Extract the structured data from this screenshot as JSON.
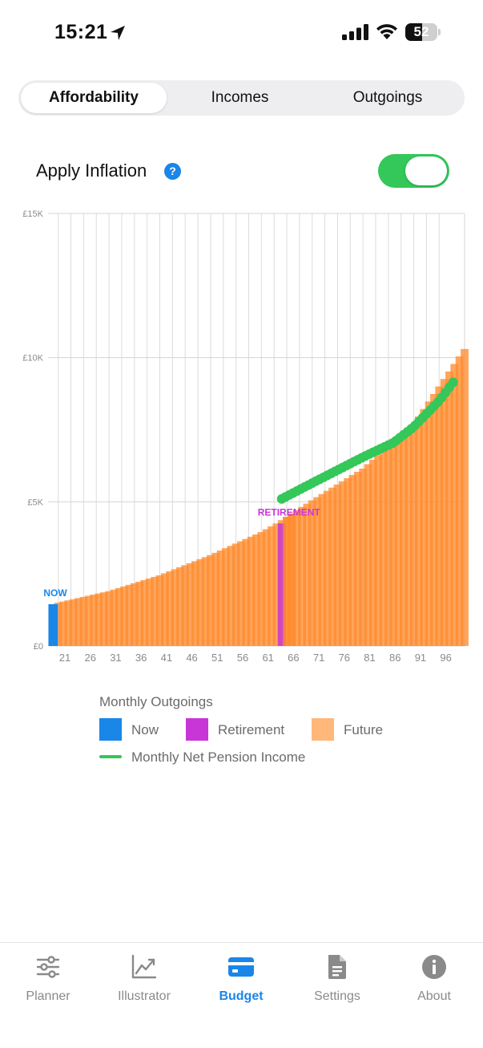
{
  "status_bar": {
    "time": "15:21",
    "battery": "52",
    "battery_percent": 52
  },
  "segments": [
    {
      "label": "Affordability",
      "active": true
    },
    {
      "label": "Incomes",
      "active": false
    },
    {
      "label": "Outgoings",
      "active": false
    }
  ],
  "inflation": {
    "label": "Apply Inflation",
    "help": "?",
    "enabled": true
  },
  "chart_data": {
    "type": "bar",
    "y_tick_labels": [
      "£0",
      "£5K",
      "£10K",
      "£15K"
    ],
    "x_tick_labels": [
      "21",
      "26",
      "31",
      "36",
      "41",
      "46",
      "51",
      "56",
      "61",
      "66",
      "71",
      "76",
      "81",
      "86",
      "91",
      "96"
    ],
    "ylim": [
      0,
      15000
    ],
    "xlim": [
      18,
      100
    ],
    "annotations": {
      "now": "NOW",
      "retirement": "RETIREMENT"
    },
    "grid": true,
    "now": {
      "age": 19,
      "value": 1450
    },
    "retirement": {
      "age": 64,
      "value": 4250
    },
    "future_outgoings": [
      [
        20,
        1500
      ],
      [
        30,
        1900
      ],
      [
        40,
        2450
      ],
      [
        50,
        3150
      ],
      [
        60,
        3950
      ],
      [
        63,
        4250
      ],
      [
        70,
        5050
      ],
      [
        80,
        6150
      ],
      [
        90,
        7700
      ],
      [
        100,
        10300
      ]
    ],
    "net_pension_income": [
      [
        64,
        5100
      ],
      [
        70,
        5650
      ],
      [
        75,
        6100
      ],
      [
        80,
        6550
      ],
      [
        86,
        7050
      ],
      [
        90,
        7600
      ],
      [
        95,
        8500
      ],
      [
        98,
        9200
      ]
    ]
  },
  "legend": {
    "title": "Monthly Outgoings",
    "items": [
      {
        "label": "Now",
        "color": "#1a86e8"
      },
      {
        "label": "Retirement",
        "color": "#c936d8"
      },
      {
        "label": "Future",
        "color": "#ffb77a"
      }
    ],
    "line": {
      "label": "Monthly Net Pension Income",
      "color": "#34c759"
    }
  },
  "tabbar": [
    {
      "label": "Planner",
      "icon": "sliders-icon",
      "active": false
    },
    {
      "label": "Illustrator",
      "icon": "chart-icon",
      "active": false
    },
    {
      "label": "Budget",
      "icon": "card-icon",
      "active": true
    },
    {
      "label": "Settings",
      "icon": "document-icon",
      "active": false
    },
    {
      "label": "About",
      "icon": "info-icon",
      "active": false
    }
  ]
}
